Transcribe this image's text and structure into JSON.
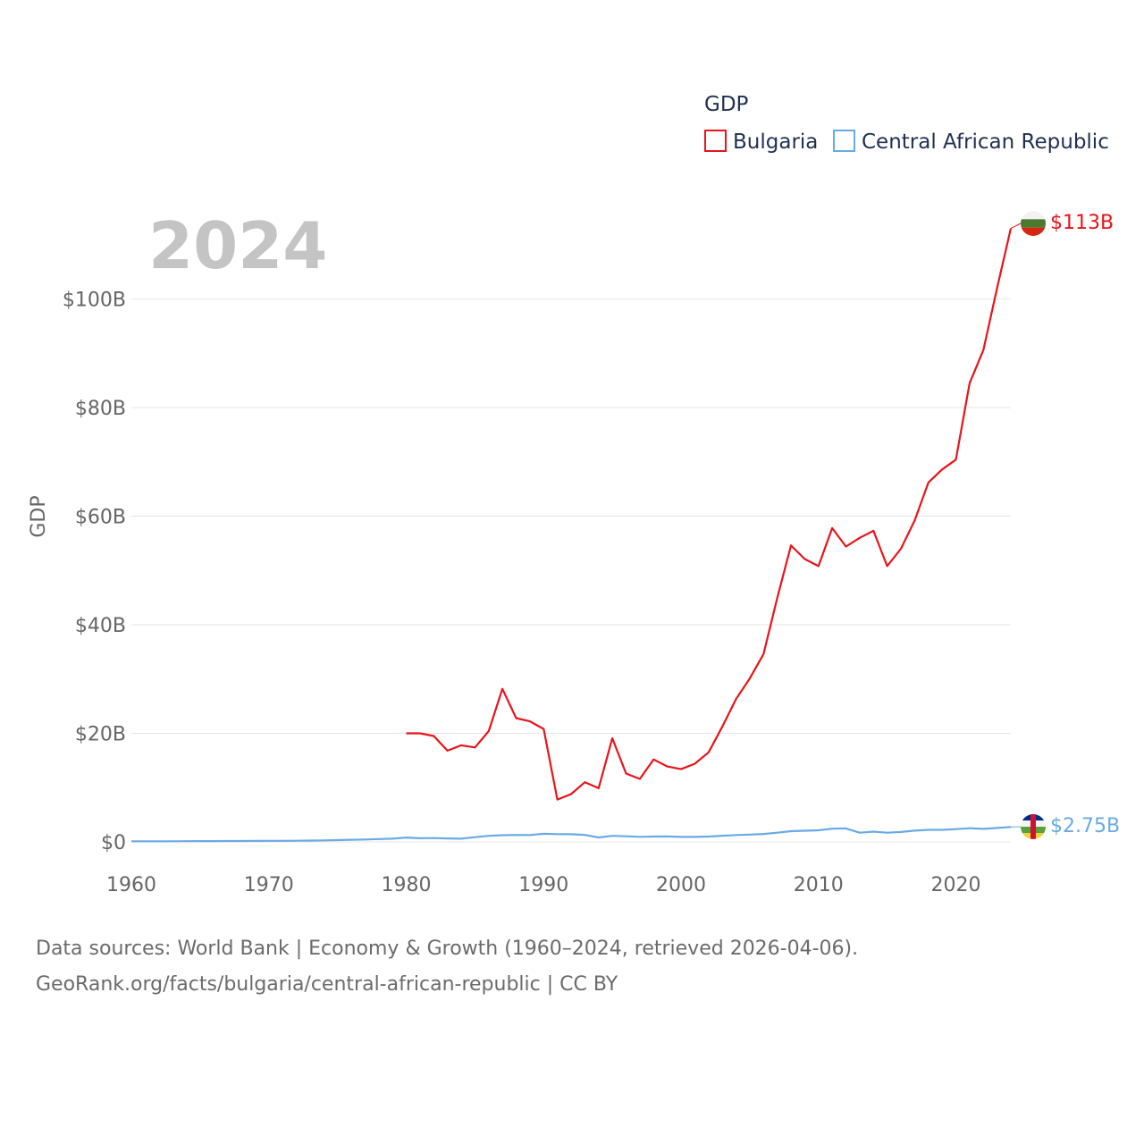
{
  "chart_data": {
    "type": "line",
    "year_label": "2024",
    "ylabel": "GDP",
    "legend_title": "GDP",
    "x_ticks": [
      "1960",
      "1970",
      "1980",
      "1990",
      "2000",
      "2010",
      "2020"
    ],
    "y_ticks": [
      "$0",
      "$20B",
      "$40B",
      "$60B",
      "$80B",
      "$100B"
    ],
    "xlim": [
      1960,
      2024
    ],
    "ylim": [
      0,
      113
    ],
    "series": [
      {
        "name": "Bulgaria",
        "color": "#e8141b",
        "end_label": "$113B",
        "x": [
          1980,
          1981,
          1982,
          1983,
          1984,
          1985,
          1986,
          1987,
          1988,
          1989,
          1990,
          1991,
          1992,
          1993,
          1994,
          1995,
          1996,
          1997,
          1998,
          1999,
          2000,
          2001,
          2002,
          2003,
          2004,
          2005,
          2006,
          2007,
          2008,
          2009,
          2010,
          2011,
          2012,
          2013,
          2014,
          2015,
          2016,
          2017,
          2018,
          2019,
          2020,
          2021,
          2022,
          2023,
          2024
        ],
        "values": [
          20.0,
          20.0,
          19.5,
          16.8,
          17.8,
          17.4,
          20.4,
          28.2,
          22.8,
          22.2,
          20.8,
          7.8,
          8.8,
          11.0,
          9.9,
          19.1,
          12.6,
          11.6,
          15.2,
          13.9,
          13.4,
          14.4,
          16.5,
          21.2,
          26.3,
          30.1,
          34.6,
          44.9,
          54.6,
          52.1,
          50.8,
          57.8,
          54.4,
          56.0,
          57.3,
          50.8,
          54.0,
          59.2,
          66.2,
          68.6,
          70.4,
          84.5,
          90.6,
          102.0,
          113.0
        ]
      },
      {
        "name": "Central African Republic",
        "color": "#6aaae4",
        "end_label": "$2.75B",
        "x": [
          1960,
          1961,
          1962,
          1963,
          1964,
          1965,
          1966,
          1967,
          1968,
          1969,
          1970,
          1971,
          1972,
          1973,
          1974,
          1975,
          1976,
          1977,
          1978,
          1979,
          1980,
          1981,
          1982,
          1983,
          1984,
          1985,
          1986,
          1987,
          1988,
          1989,
          1990,
          1991,
          1992,
          1993,
          1994,
          1995,
          1996,
          1997,
          1998,
          1999,
          2000,
          2001,
          2002,
          2003,
          2004,
          2005,
          2006,
          2007,
          2008,
          2009,
          2010,
          2011,
          2012,
          2013,
          2014,
          2015,
          2016,
          2017,
          2018,
          2019,
          2020,
          2021,
          2022,
          2023,
          2024
        ],
        "values": [
          0.11,
          0.11,
          0.12,
          0.12,
          0.13,
          0.14,
          0.15,
          0.16,
          0.17,
          0.18,
          0.19,
          0.2,
          0.22,
          0.25,
          0.28,
          0.33,
          0.39,
          0.45,
          0.52,
          0.59,
          0.8,
          0.68,
          0.7,
          0.64,
          0.59,
          0.87,
          1.12,
          1.23,
          1.29,
          1.27,
          1.49,
          1.43,
          1.41,
          1.28,
          0.83,
          1.12,
          1.03,
          0.94,
          0.99,
          1.0,
          0.92,
          0.93,
          0.99,
          1.14,
          1.27,
          1.35,
          1.47,
          1.7,
          1.98,
          2.06,
          2.14,
          2.44,
          2.48,
          1.69,
          1.89,
          1.7,
          1.83,
          2.07,
          2.22,
          2.22,
          2.36,
          2.52,
          2.41,
          2.56,
          2.75
        ]
      }
    ]
  },
  "flags": {
    "bulgaria_colors": [
      "#ffffff",
      "#00966e",
      "#d62612"
    ],
    "car_colors": [
      "#003082",
      "#ffffff",
      "#289728",
      "#ffce00",
      "#d21034"
    ]
  },
  "source": {
    "line1": "Data sources: World Bank | Economy & Growth (1960–2024, retrieved 2026-04-06).",
    "line2": "GeoRank.org/facts/bulgaria/central-african-republic | CC BY"
  }
}
